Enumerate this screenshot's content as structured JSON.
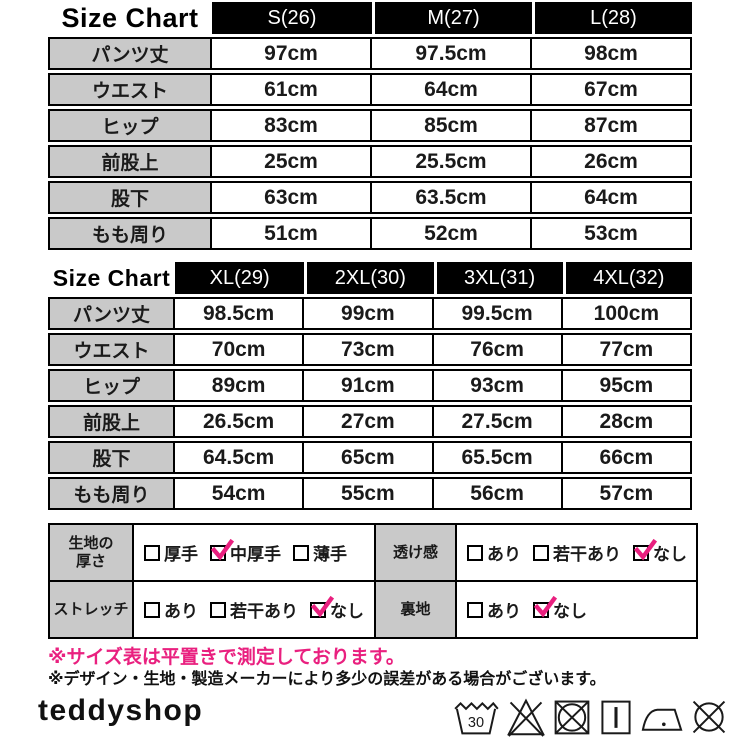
{
  "size_charts": [
    {
      "title": "Size Chart",
      "header_columns": [
        "S(26)",
        "M(27)",
        "L(28)"
      ],
      "rows": [
        {
          "label": "パンツ丈",
          "values": [
            "97cm",
            "97.5cm",
            "98cm"
          ]
        },
        {
          "label": "ウエスト",
          "values": [
            "61cm",
            "64cm",
            "67cm"
          ]
        },
        {
          "label": "ヒップ",
          "values": [
            "83cm",
            "85cm",
            "87cm"
          ]
        },
        {
          "label": "前股上",
          "values": [
            "25cm",
            "25.5cm",
            "26cm"
          ]
        },
        {
          "label": "股下",
          "values": [
            "63cm",
            "63.5cm",
            "64cm"
          ]
        },
        {
          "label": "もも周り",
          "values": [
            "51cm",
            "52cm",
            "53cm"
          ]
        }
      ]
    },
    {
      "title": "Size Chart",
      "header_columns": [
        "XL(29)",
        "2XL(30)",
        "3XL(31)",
        "4XL(32)"
      ],
      "rows": [
        {
          "label": "パンツ丈",
          "values": [
            "98.5cm",
            "99cm",
            "99.5cm",
            "100cm"
          ]
        },
        {
          "label": "ウエスト",
          "values": [
            "70cm",
            "73cm",
            "76cm",
            "77cm"
          ]
        },
        {
          "label": "ヒップ",
          "values": [
            "89cm",
            "91cm",
            "93cm",
            "95cm"
          ]
        },
        {
          "label": "前股上",
          "values": [
            "26.5cm",
            "27cm",
            "27.5cm",
            "28cm"
          ]
        },
        {
          "label": "股下",
          "values": [
            "64.5cm",
            "65cm",
            "65.5cm",
            "66cm"
          ]
        },
        {
          "label": "もも周り",
          "values": [
            "54cm",
            "55cm",
            "56cm",
            "57cm"
          ]
        }
      ]
    }
  ],
  "fabric_spec": {
    "cells": [
      {
        "label": "生地の\n厚さ",
        "options": [
          {
            "text": "厚手",
            "checked": false
          },
          {
            "text": "中厚手",
            "checked": true
          },
          {
            "text": "薄手",
            "checked": false
          }
        ]
      },
      {
        "label": "透け感",
        "options": [
          {
            "text": "あり",
            "checked": false
          },
          {
            "text": "若干あり",
            "checked": false
          },
          {
            "text": "なし",
            "checked": true
          }
        ]
      },
      {
        "label": "ストレッチ",
        "options": [
          {
            "text": "あり",
            "checked": false
          },
          {
            "text": "若干あり",
            "checked": false
          },
          {
            "text": "なし",
            "checked": true
          }
        ]
      },
      {
        "label": "裏地",
        "options": [
          {
            "text": "あり",
            "checked": false
          },
          {
            "text": "なし",
            "checked": true
          }
        ]
      }
    ]
  },
  "notes": {
    "measurement": "※サイズ表は平置きで測定しております。",
    "tolerance": "※デザイン・生地・製造メーカーにより多少の誤差がある場合がございます。"
  },
  "footer": {
    "logo_text": "teddyshop",
    "wash_temperature": "30",
    "care_icons": [
      "wash-30-icon",
      "do-not-bleach-icon",
      "do-not-tumble-dry-icon",
      "drip-dry-icon",
      "iron-low-icon",
      "do-not-dry-clean-icon"
    ]
  },
  "colors": {
    "accent_pink": "#e9207f",
    "header_black": "#000000",
    "label_gray": "#c9c9c9"
  }
}
